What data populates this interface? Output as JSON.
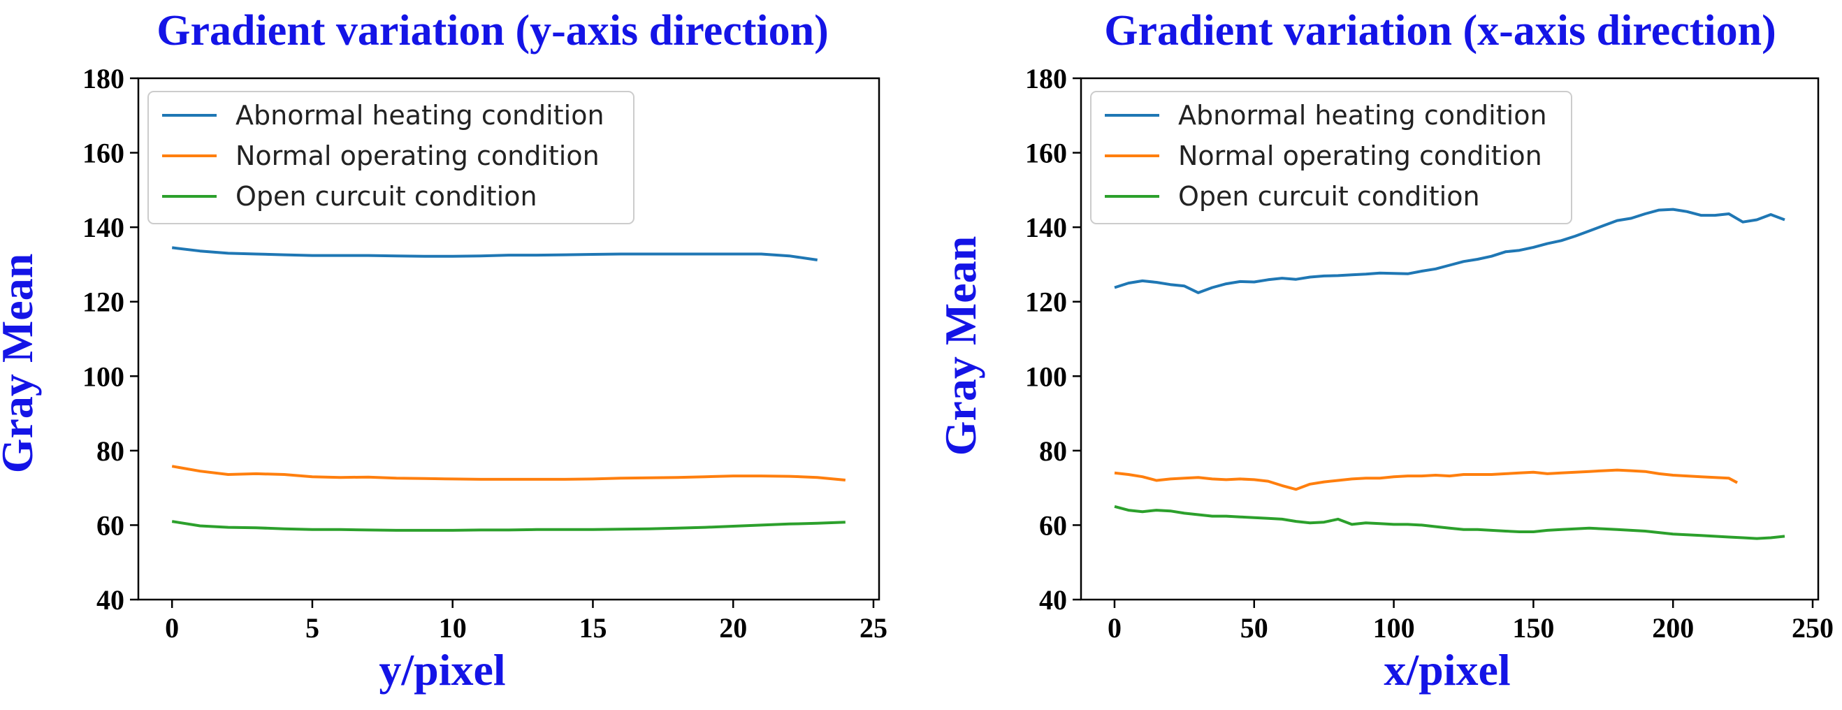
{
  "chart_data": [
    {
      "type": "line",
      "title": "Gradient variation (y-axis direction)",
      "xlabel": "y/pixel",
      "ylabel": "Gray Mean",
      "xlim": [
        -1.2,
        25.2
      ],
      "ylim": [
        40,
        180
      ],
      "xticks": [
        0,
        5,
        10,
        15,
        20,
        25
      ],
      "yticks": [
        40,
        60,
        80,
        100,
        120,
        140,
        160,
        180
      ],
      "legend_position": "upper-left",
      "series": [
        {
          "name": "Abnormal heating condition",
          "color": "#1f77b4",
          "x": [
            0,
            1,
            2,
            3,
            4,
            5,
            6,
            7,
            8,
            9,
            10,
            11,
            12,
            13,
            14,
            15,
            16,
            17,
            18,
            19,
            20,
            21,
            22,
            23
          ],
          "y": [
            134.5,
            133.6,
            133.0,
            132.8,
            132.6,
            132.4,
            132.4,
            132.4,
            132.3,
            132.2,
            132.2,
            132.3,
            132.5,
            132.5,
            132.6,
            132.7,
            132.8,
            132.8,
            132.8,
            132.8,
            132.8,
            132.8,
            132.3,
            131.2
          ]
        },
        {
          "name": "Normal operating condition",
          "color": "#ff7f0e",
          "x": [
            0,
            1,
            2,
            3,
            4,
            5,
            6,
            7,
            8,
            9,
            10,
            11,
            12,
            13,
            14,
            15,
            16,
            17,
            18,
            19,
            20,
            21,
            22,
            23,
            24
          ],
          "y": [
            75.8,
            74.5,
            73.6,
            73.8,
            73.6,
            73.0,
            72.8,
            72.9,
            72.6,
            72.5,
            72.4,
            72.3,
            72.3,
            72.3,
            72.3,
            72.4,
            72.6,
            72.7,
            72.8,
            73.0,
            73.2,
            73.2,
            73.1,
            72.8,
            72.1
          ]
        },
        {
          "name": "Open curcuit condition",
          "color": "#2ca02c",
          "x": [
            0,
            1,
            2,
            3,
            4,
            5,
            6,
            7,
            8,
            9,
            10,
            11,
            12,
            13,
            14,
            15,
            16,
            17,
            18,
            19,
            20,
            21,
            22,
            23,
            24
          ],
          "y": [
            61.0,
            59.8,
            59.4,
            59.3,
            59.0,
            58.8,
            58.8,
            58.7,
            58.6,
            58.6,
            58.6,
            58.7,
            58.7,
            58.8,
            58.8,
            58.8,
            58.9,
            59.0,
            59.2,
            59.4,
            59.7,
            60.0,
            60.3,
            60.5,
            60.8
          ]
        }
      ]
    },
    {
      "type": "line",
      "title": "Gradient variation (x-axis direction)",
      "xlabel": "x/pixel",
      "ylabel": "Gray Mean",
      "xlim": [
        -12,
        252
      ],
      "ylim": [
        40,
        180
      ],
      "xticks": [
        0,
        50,
        100,
        150,
        200,
        250
      ],
      "yticks": [
        40,
        60,
        80,
        100,
        120,
        140,
        160,
        180
      ],
      "legend_position": "upper-left",
      "series": [
        {
          "name": "Abnormal heating condition",
          "color": "#1f77b4",
          "x": [
            0,
            5,
            10,
            15,
            20,
            25,
            30,
            35,
            40,
            45,
            50,
            55,
            60,
            65,
            70,
            75,
            80,
            85,
            90,
            95,
            100,
            105,
            110,
            115,
            120,
            125,
            130,
            135,
            140,
            145,
            150,
            155,
            160,
            165,
            170,
            175,
            180,
            185,
            190,
            195,
            200,
            205,
            210,
            215,
            220,
            225,
            230,
            235,
            240
          ],
          "y": [
            123.8,
            125.0,
            125.6,
            125.2,
            124.6,
            124.2,
            122.4,
            123.8,
            124.8,
            125.4,
            125.3,
            125.9,
            126.3,
            126.0,
            126.6,
            126.9,
            127.0,
            127.2,
            127.4,
            127.7,
            127.6,
            127.5,
            128.2,
            128.8,
            129.8,
            130.8,
            131.4,
            132.2,
            133.4,
            133.8,
            134.6,
            135.6,
            136.4,
            137.6,
            139.0,
            140.4,
            141.8,
            142.4,
            143.6,
            144.6,
            144.8,
            144.2,
            143.2,
            143.2,
            143.6,
            141.4,
            142.0,
            143.4,
            142.0
          ]
        },
        {
          "name": "Normal operating condition",
          "color": "#ff7f0e",
          "x": [
            0,
            5,
            10,
            15,
            20,
            25,
            30,
            35,
            40,
            45,
            50,
            55,
            60,
            65,
            70,
            75,
            80,
            85,
            90,
            95,
            100,
            105,
            110,
            115,
            120,
            125,
            130,
            135,
            140,
            145,
            150,
            155,
            160,
            165,
            170,
            175,
            180,
            185,
            190,
            195,
            200,
            205,
            210,
            215,
            220,
            223
          ],
          "y": [
            74.0,
            73.6,
            73.0,
            72.0,
            72.4,
            72.6,
            72.8,
            72.4,
            72.2,
            72.4,
            72.2,
            71.8,
            70.6,
            69.6,
            71.0,
            71.6,
            72.0,
            72.4,
            72.6,
            72.6,
            73.0,
            73.2,
            73.2,
            73.4,
            73.2,
            73.6,
            73.6,
            73.6,
            73.8,
            74.0,
            74.2,
            73.8,
            74.0,
            74.2,
            74.4,
            74.6,
            74.8,
            74.6,
            74.4,
            73.8,
            73.4,
            73.2,
            73.0,
            72.8,
            72.6,
            71.4
          ]
        },
        {
          "name": "Open curcuit condition",
          "color": "#2ca02c",
          "x": [
            0,
            5,
            10,
            15,
            20,
            25,
            30,
            35,
            40,
            45,
            50,
            55,
            60,
            65,
            70,
            75,
            80,
            85,
            90,
            95,
            100,
            105,
            110,
            115,
            120,
            125,
            130,
            135,
            140,
            145,
            150,
            155,
            160,
            165,
            170,
            175,
            180,
            185,
            190,
            195,
            200,
            205,
            210,
            215,
            220,
            225,
            230,
            235,
            240
          ],
          "y": [
            65.0,
            64.0,
            63.6,
            64.0,
            63.8,
            63.2,
            62.8,
            62.4,
            62.4,
            62.2,
            62.0,
            61.8,
            61.6,
            61.0,
            60.6,
            60.8,
            61.6,
            60.2,
            60.6,
            60.4,
            60.2,
            60.2,
            60.0,
            59.6,
            59.2,
            58.8,
            58.8,
            58.6,
            58.4,
            58.2,
            58.2,
            58.6,
            58.8,
            59.0,
            59.2,
            59.0,
            58.8,
            58.6,
            58.4,
            58.0,
            57.6,
            57.4,
            57.2,
            57.0,
            56.8,
            56.6,
            56.4,
            56.6,
            57.0
          ]
        }
      ]
    }
  ]
}
